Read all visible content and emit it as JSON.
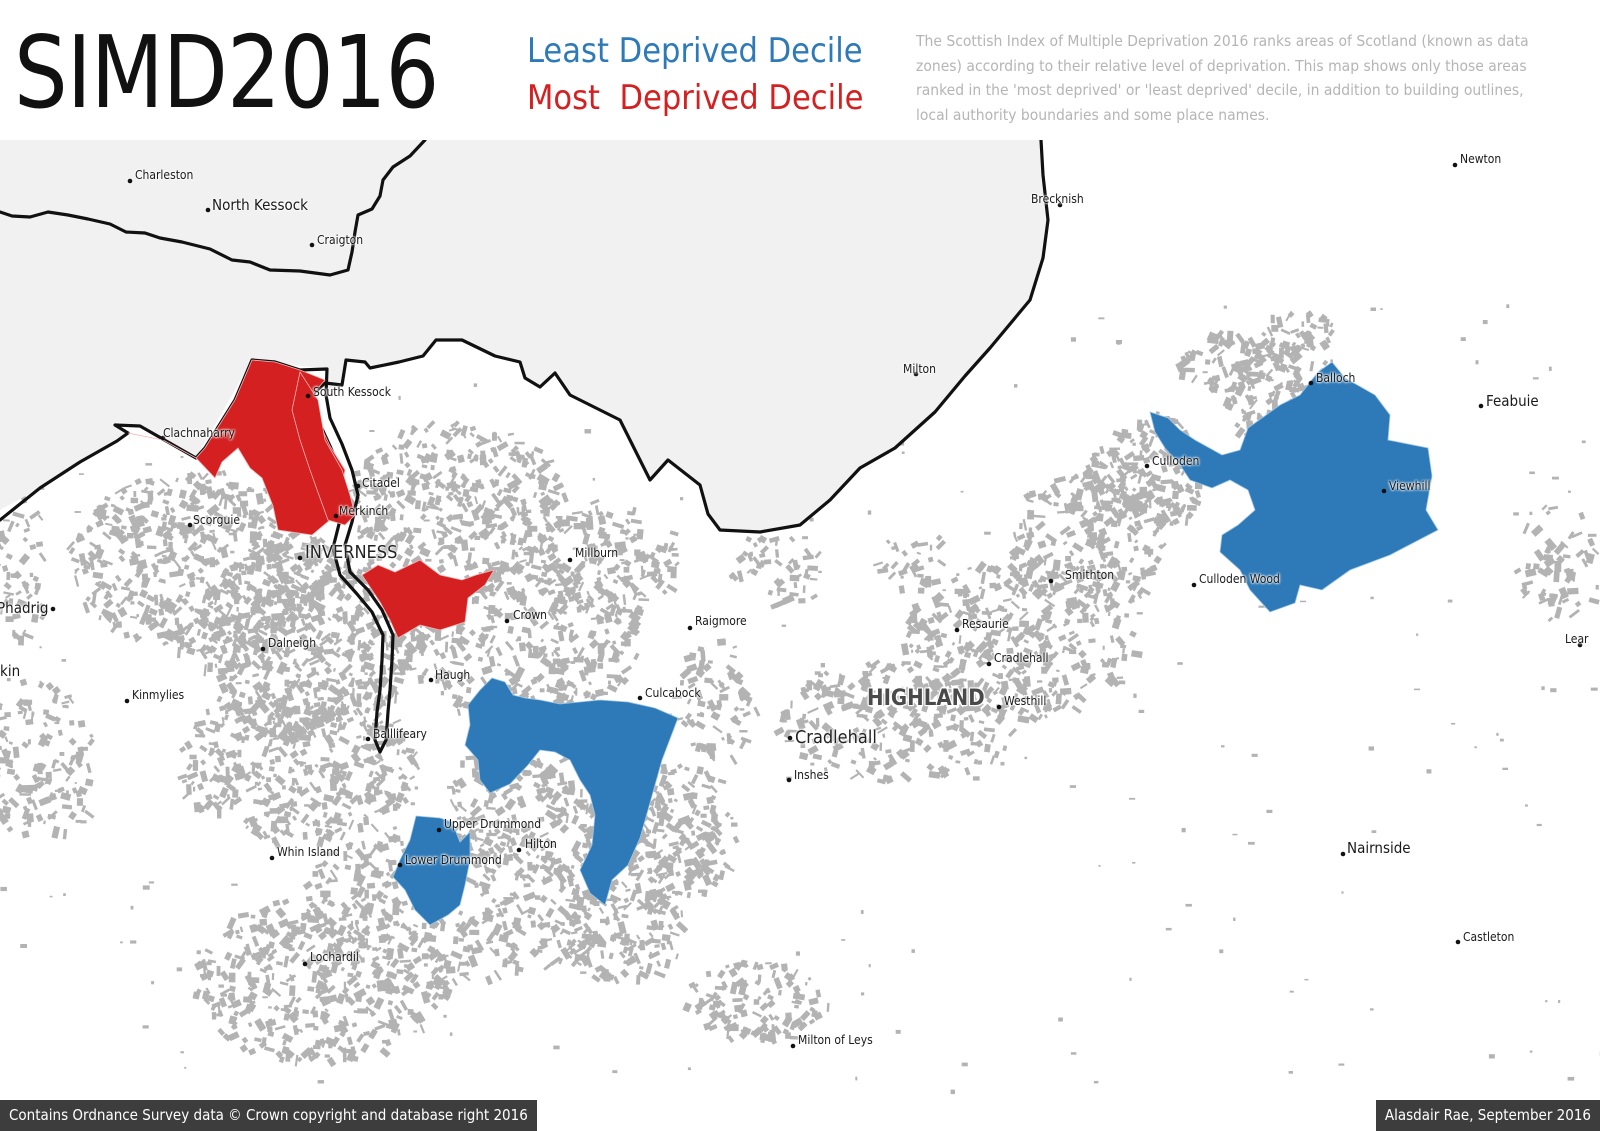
{
  "title": "SIMD2016",
  "legend": {
    "least": {
      "label": "Least Deprived Decile",
      "color": "#2e7ab8"
    },
    "most": {
      "label": "Most  Deprived Decile",
      "color": "#d42020"
    }
  },
  "description": "The Scottish Index of Multiple Deprivation 2016 ranks areas of Scotland (known as data zones) according to their relative level of deprivation. This map shows only those areas ranked in the 'most deprived' or 'least deprived' decile, in addition to building outlines, local authority boundaries and some place names.",
  "colors": {
    "least_deprived": "#2e7ab8",
    "most_deprived": "#d42020",
    "water": "#f1f1f1",
    "coastline": "#111111",
    "buildings": "#b3b3b3",
    "footer_bg": "#3d3d3d"
  },
  "map": {
    "region_label": "HIGHLAND",
    "places": [
      {
        "name": "Charleston",
        "size": "normal",
        "dot": true
      },
      {
        "name": "North Kessock",
        "size": "big",
        "dot": true
      },
      {
        "name": "Craigton",
        "size": "normal",
        "dot": true
      },
      {
        "name": "South Kessock",
        "size": "normal",
        "dot": true
      },
      {
        "name": "Clachnaharry",
        "size": "normal",
        "dot": true
      },
      {
        "name": "Citadel",
        "size": "normal",
        "dot": true
      },
      {
        "name": "Merkinch",
        "size": "normal",
        "dot": true
      },
      {
        "name": "Scorguie",
        "size": "normal",
        "dot": true
      },
      {
        "name": "INVERNESS",
        "size": "xl",
        "dot": true
      },
      {
        "name": "Millburn",
        "size": "normal",
        "dot": true
      },
      {
        "name": "Crown",
        "size": "normal",
        "dot": true
      },
      {
        "name": "Raigmore",
        "size": "normal",
        "dot": true
      },
      {
        "name": "Dalneigh",
        "size": "normal",
        "dot": true
      },
      {
        "name": "Haugh",
        "size": "normal",
        "dot": true
      },
      {
        "name": "Culcabock",
        "size": "normal",
        "dot": true
      },
      {
        "name": "Kinmylies",
        "size": "normal",
        "dot": true
      },
      {
        "name": "Balllifeary",
        "size": "normal",
        "dot": true
      },
      {
        "name": "Cradlehall",
        "size": "xl",
        "dot": true
      },
      {
        "name": "Inshes",
        "size": "normal",
        "dot": true
      },
      {
        "name": "Upper Drummond",
        "size": "normal",
        "dot": true
      },
      {
        "name": "Hilton",
        "size": "normal",
        "dot": true
      },
      {
        "name": "Lower Drummond",
        "size": "normal",
        "dot": true
      },
      {
        "name": "Whin Island",
        "size": "normal",
        "dot": true
      },
      {
        "name": "Lochardil",
        "size": "normal",
        "dot": true
      },
      {
        "name": "Milton of Leys",
        "size": "normal",
        "dot": true
      },
      {
        "name": "Phadrig",
        "size": "big",
        "dot": true
      },
      {
        "name": "kin",
        "size": "big",
        "dot": false
      },
      {
        "name": "Brecknish",
        "size": "normal",
        "dot": true
      },
      {
        "name": "Milton",
        "size": "normal",
        "dot": true
      },
      {
        "name": "Newton",
        "size": "normal",
        "dot": true
      },
      {
        "name": "Balloch",
        "size": "normal",
        "dot": true
      },
      {
        "name": "Feabuie",
        "size": "big",
        "dot": true
      },
      {
        "name": "Culloden",
        "size": "normal",
        "dot": true
      },
      {
        "name": "Viewhill",
        "size": "normal",
        "dot": true
      },
      {
        "name": "Culloden Wood",
        "size": "normal",
        "dot": true
      },
      {
        "name": "Smithton",
        "size": "normal",
        "dot": true
      },
      {
        "name": "Resaurie",
        "size": "normal",
        "dot": true
      },
      {
        "name": "Cradlehall",
        "size": "normal",
        "dot": true
      },
      {
        "name": "Westhill",
        "size": "normal",
        "dot": true
      },
      {
        "name": "Nairnside",
        "size": "big",
        "dot": true
      },
      {
        "name": "Castleton",
        "size": "normal",
        "dot": true
      },
      {
        "name": "Lear",
        "size": "normal",
        "dot": true
      }
    ]
  },
  "footer": {
    "left": "Contains Ordnance Survey data © Crown copyright and database right 2016",
    "right": "Alasdair Rae, September 2016"
  }
}
